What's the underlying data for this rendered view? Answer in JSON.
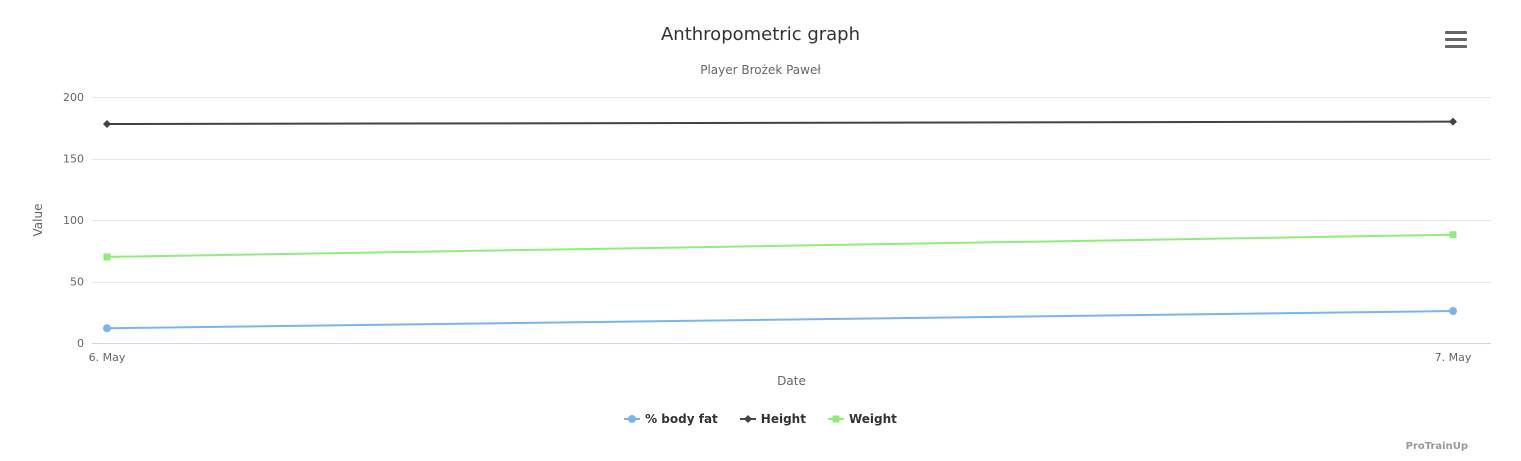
{
  "chart": {
    "title": "Anthropometric graph",
    "subtitle": "Player Brożek Paweł",
    "xlabel": "Date",
    "ylabel": "Value",
    "credit": "ProTrainUp",
    "menu_icon": "hamburger-icon"
  },
  "chart_data": {
    "type": "line",
    "categories": [
      "6. May",
      "7. May"
    ],
    "series": [
      {
        "name": "% body fat",
        "values": [
          12,
          26
        ],
        "color": "#7cb5ec",
        "marker": "circle"
      },
      {
        "name": "Height",
        "values": [
          178,
          180
        ],
        "color": "#434348",
        "marker": "diamond"
      },
      {
        "name": "Weight",
        "values": [
          70,
          88
        ],
        "color": "#90ed7d",
        "marker": "square"
      }
    ],
    "ylim": [
      0,
      200
    ],
    "yticks": [
      0,
      50,
      100,
      150,
      200
    ],
    "grid": true,
    "grid_color": "#e6e6e6",
    "axis_line_color": "#ccd6eb",
    "axis_label_color": "#666666",
    "legend_position": "bottom"
  }
}
